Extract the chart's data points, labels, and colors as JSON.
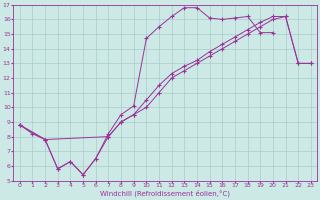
{
  "xlabel": "Windchill (Refroidissement éolien,°C)",
  "bg_color": "#cce9e6",
  "grid_color": "#aaccca",
  "line_color": "#993399",
  "xlim": [
    -0.5,
    23.5
  ],
  "ylim": [
    5,
    17
  ],
  "xticks": [
    0,
    1,
    2,
    3,
    4,
    5,
    6,
    7,
    8,
    9,
    10,
    11,
    12,
    13,
    14,
    15,
    16,
    17,
    18,
    19,
    20,
    21,
    22,
    23
  ],
  "yticks": [
    5,
    6,
    7,
    8,
    9,
    10,
    11,
    12,
    13,
    14,
    15,
    16,
    17
  ],
  "curve1_x": [
    0,
    1,
    2,
    3,
    4,
    5,
    6,
    7,
    8,
    9,
    10,
    11,
    12,
    13,
    14,
    15,
    16,
    17,
    18,
    19,
    20
  ],
  "curve1_y": [
    8.8,
    8.2,
    7.8,
    5.8,
    6.3,
    5.4,
    6.5,
    8.2,
    9.5,
    10.1,
    14.7,
    15.5,
    16.2,
    16.8,
    16.8,
    16.1,
    16.0,
    16.1,
    16.2,
    15.1,
    15.1
  ],
  "curve2_x": [
    0,
    2,
    3,
    4,
    5,
    6,
    7,
    8,
    9,
    10,
    11,
    12,
    13,
    14,
    15,
    16,
    17,
    18,
    19,
    20,
    21,
    22,
    23
  ],
  "curve2_y": [
    8.8,
    7.8,
    5.8,
    6.3,
    5.4,
    6.5,
    8.0,
    9.0,
    9.5,
    10.5,
    11.5,
    12.3,
    12.8,
    13.2,
    13.8,
    14.3,
    14.8,
    15.3,
    15.8,
    16.2,
    16.2,
    13.0,
    13.0
  ],
  "curve3_x": [
    0,
    2,
    7,
    8,
    9,
    10,
    11,
    12,
    13,
    14,
    15,
    16,
    17,
    18,
    19,
    20,
    21,
    22,
    23
  ],
  "curve3_y": [
    8.8,
    7.8,
    8.0,
    9.0,
    9.5,
    10.0,
    11.0,
    12.0,
    12.5,
    13.0,
    13.5,
    14.0,
    14.5,
    15.0,
    15.5,
    16.0,
    16.2,
    13.0,
    13.0
  ]
}
